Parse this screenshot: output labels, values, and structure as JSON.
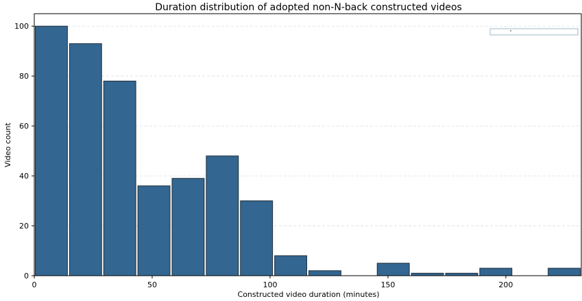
{
  "chart_data": {
    "type": "bar",
    "title": "Duration distribution of adopted non-N-back constructed videos",
    "xlabel": "Constructed video duration (minutes)",
    "ylabel": "Video count",
    "xlim": [
      0,
      232
    ],
    "ylim": [
      0,
      105
    ],
    "xticks": [
      0,
      50,
      100,
      150,
      200
    ],
    "yticks": [
      0,
      20,
      40,
      60,
      80,
      100
    ],
    "grid": {
      "x": false,
      "y": true
    },
    "bars": [
      {
        "x0": 0,
        "x1": 14.5,
        "value": 100
      },
      {
        "x0": 14.5,
        "x1": 29,
        "value": 93
      },
      {
        "x0": 29,
        "x1": 43.5,
        "value": 78
      },
      {
        "x0": 43.5,
        "x1": 58,
        "value": 36
      },
      {
        "x0": 58,
        "x1": 72.5,
        "value": 39
      },
      {
        "x0": 72.5,
        "x1": 87,
        "value": 48
      },
      {
        "x0": 87,
        "x1": 101.5,
        "value": 30
      },
      {
        "x0": 101.5,
        "x1": 116,
        "value": 8
      },
      {
        "x0": 116,
        "x1": 130.5,
        "value": 2
      },
      {
        "x0": 130.5,
        "x1": 145,
        "value": 0
      },
      {
        "x0": 145,
        "x1": 159.5,
        "value": 5
      },
      {
        "x0": 159.5,
        "x1": 174,
        "value": 1
      },
      {
        "x0": 174,
        "x1": 188.5,
        "value": 1
      },
      {
        "x0": 188.5,
        "x1": 203,
        "value": 3
      },
      {
        "x0": 203,
        "x1": 217.5,
        "value": 0
      },
      {
        "x0": 217.5,
        "x1": 232,
        "value": 3
      }
    ],
    "bar_color": "#336690",
    "bar_edge_color": "#1f2f3b",
    "legend": {
      "placement": "top-right",
      "entries": []
    }
  }
}
